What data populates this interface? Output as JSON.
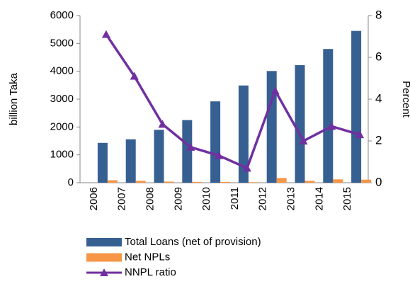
{
  "chart_data": {
    "type": "bar-line",
    "ylabel": "billion Taka",
    "y2label": "Percent",
    "categories": [
      "2006",
      "2007",
      "2008",
      "2009",
      "2010",
      "2011",
      "2012",
      "2013",
      "2014",
      "2015"
    ],
    "series": [
      {
        "name": "Total Loans (net of provision)",
        "type": "bar",
        "color": "#376092",
        "values": [
          1430,
          1560,
          1900,
          2250,
          2920,
          3490,
          4010,
          4220,
          4800,
          5450
        ]
      },
      {
        "name": "Net NPLs",
        "type": "bar",
        "color": "#f79646",
        "values": [
          90,
          70,
          40,
          30,
          30,
          20,
          170,
          70,
          120,
          110
        ]
      },
      {
        "name": "NNPL ratio",
        "type": "line",
        "axis": "y2",
        "color": "#7030a0",
        "values": [
          7.1,
          5.1,
          2.8,
          1.7,
          1.3,
          0.7,
          4.4,
          2.0,
          2.7,
          2.3
        ]
      }
    ],
    "ylim": [
      0,
      6000
    ],
    "yticks": [
      0,
      1000,
      2000,
      3000,
      4000,
      5000,
      6000
    ],
    "y2lim": [
      0,
      8
    ],
    "y2ticks": [
      0,
      2,
      4,
      6,
      8
    ],
    "legend": "bottom"
  }
}
